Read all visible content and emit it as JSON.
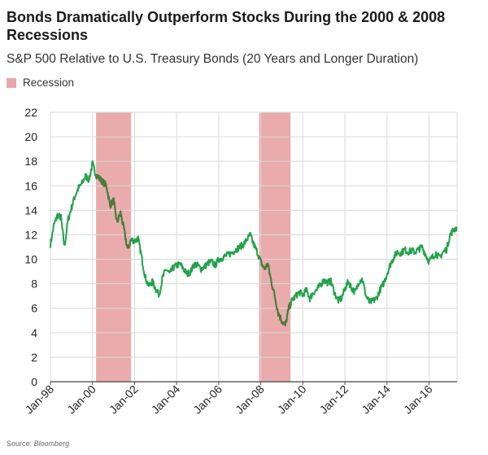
{
  "title": "Bonds Dramatically Outperform Stocks During the 2000 & 2008 Recessions",
  "subtitle": "S&P 500 Relative to U.S. Treasury Bonds (20 Years and Longer Duration)",
  "legend": {
    "recession_label": "Recession"
  },
  "source": {
    "prefix": "Source:",
    "name": "Bloomberg"
  },
  "colors": {
    "line": "#22a24a",
    "line_in_recession": "#4a7a3c",
    "recession": "#e8a7a8",
    "grid": "#d9d9d9"
  },
  "chart_data": {
    "type": "line",
    "title": "Bonds Dramatically Outperform Stocks During the 2000 & 2008 Recessions",
    "subtitle": "S&P 500 Relative to U.S. Treasury Bonds (20 Years and Longer Duration)",
    "xlabel": "",
    "ylabel": "",
    "ylim": [
      0,
      22
    ],
    "xlim": [
      "1998-01",
      "2017-05"
    ],
    "y_ticks": [
      0,
      2,
      4,
      6,
      8,
      10,
      12,
      14,
      16,
      18,
      20,
      22
    ],
    "x_ticks": [
      "Jan-98",
      "Jan-00",
      "Jan-02",
      "Jan-04",
      "Jan-06",
      "Jan-08",
      "Jan-10",
      "Jan-12",
      "Jan-14",
      "Jan-16"
    ],
    "grid": true,
    "recessions": [
      {
        "start": "2000-03",
        "end": "2001-11"
      },
      {
        "start": "2007-12",
        "end": "2009-06"
      }
    ],
    "series": [
      {
        "x": [
          "1998-01",
          "1998-03",
          "1998-05",
          "1998-07",
          "1998-09",
          "1998-11",
          "1999-01",
          "1999-03",
          "1999-05",
          "1999-07",
          "1999-09",
          "1999-11",
          "2000-01",
          "2000-03",
          "2000-05",
          "2000-07",
          "2000-09",
          "2000-11",
          "2001-01",
          "2001-03",
          "2001-05",
          "2001-07",
          "2001-09",
          "2001-11",
          "2002-01",
          "2002-03",
          "2002-05",
          "2002-07",
          "2002-09",
          "2002-11",
          "2003-01",
          "2003-03",
          "2003-05",
          "2003-07",
          "2003-09",
          "2003-11",
          "2004-01",
          "2004-03",
          "2004-05",
          "2004-07",
          "2004-09",
          "2004-11",
          "2005-01",
          "2005-03",
          "2005-05",
          "2005-07",
          "2005-09",
          "2005-11",
          "2006-01",
          "2006-03",
          "2006-05",
          "2006-07",
          "2006-09",
          "2006-11",
          "2007-01",
          "2007-03",
          "2007-05",
          "2007-07",
          "2007-09",
          "2007-11",
          "2008-01",
          "2008-03",
          "2008-05",
          "2008-07",
          "2008-09",
          "2008-11",
          "2009-01",
          "2009-03",
          "2009-05",
          "2009-07",
          "2009-09",
          "2009-11",
          "2010-01",
          "2010-03",
          "2010-05",
          "2010-07",
          "2010-09",
          "2010-11",
          "2011-01",
          "2011-03",
          "2011-05",
          "2011-07",
          "2011-09",
          "2011-11",
          "2012-01",
          "2012-03",
          "2012-05",
          "2012-07",
          "2012-09",
          "2012-11",
          "2013-01",
          "2013-03",
          "2013-05",
          "2013-07",
          "2013-09",
          "2013-11",
          "2014-01",
          "2014-03",
          "2014-05",
          "2014-07",
          "2014-09",
          "2014-11",
          "2015-01",
          "2015-03",
          "2015-05",
          "2015-07",
          "2015-09",
          "2015-11",
          "2016-01",
          "2016-03",
          "2016-05",
          "2016-07",
          "2016-09",
          "2016-11",
          "2017-01",
          "2017-03",
          "2017-05"
        ],
        "values": [
          11.2,
          12.8,
          13.6,
          13.4,
          11.0,
          13.2,
          14.2,
          15.2,
          15.8,
          16.2,
          16.8,
          16.5,
          17.8,
          16.9,
          16.6,
          16.3,
          16.0,
          14.4,
          14.8,
          13.0,
          13.8,
          12.4,
          10.8,
          11.6,
          11.5,
          11.7,
          10.2,
          8.6,
          7.8,
          8.2,
          7.6,
          7.1,
          8.5,
          9.2,
          8.8,
          9.3,
          9.5,
          9.6,
          9.2,
          8.8,
          9.0,
          9.6,
          9.5,
          9.2,
          9.4,
          9.7,
          9.8,
          9.5,
          10.0,
          10.1,
          10.3,
          10.4,
          10.6,
          10.8,
          11.0,
          11.2,
          11.6,
          12.0,
          11.2,
          10.6,
          9.8,
          9.2,
          9.6,
          8.2,
          7.0,
          5.6,
          5.0,
          4.6,
          6.0,
          6.7,
          7.0,
          7.3,
          7.1,
          7.5,
          6.8,
          7.3,
          7.5,
          7.9,
          8.3,
          8.1,
          8.2,
          7.3,
          6.6,
          6.8,
          7.6,
          8.2,
          7.6,
          7.3,
          8.2,
          8.4,
          7.0,
          6.5,
          6.6,
          6.8,
          7.5,
          8.0,
          8.8,
          9.6,
          10.2,
          10.6,
          10.5,
          10.8,
          10.6,
          10.7,
          10.6,
          10.8,
          11.0,
          10.4,
          9.8,
          10.2,
          10.5,
          10.1,
          10.6,
          10.8,
          12.0,
          12.4,
          12.6
        ]
      }
    ]
  }
}
